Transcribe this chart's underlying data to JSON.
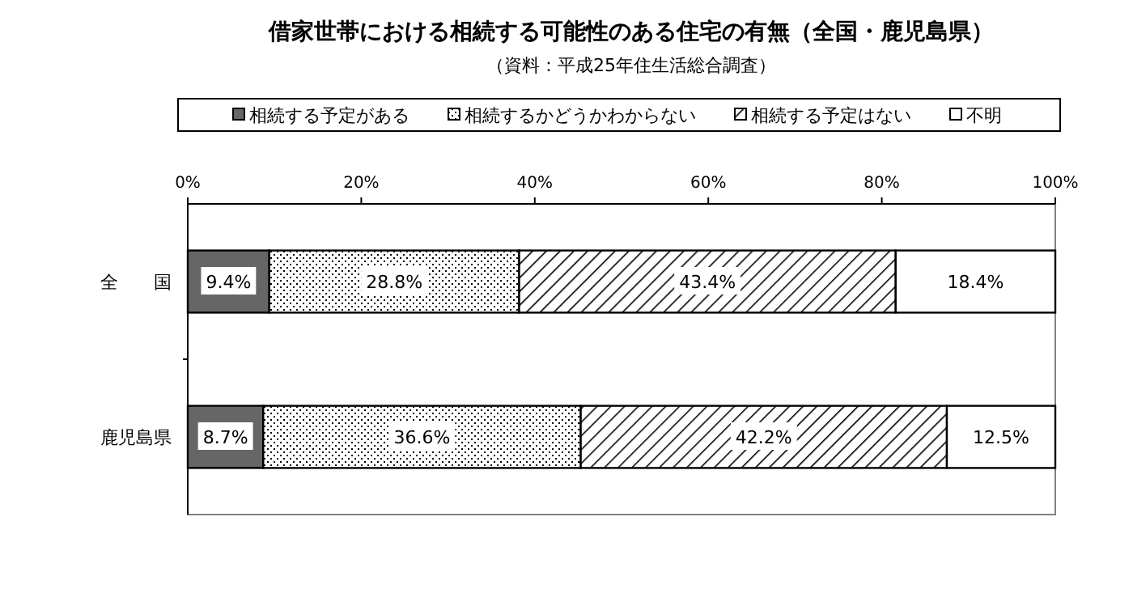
{
  "chart_data": {
    "type": "bar",
    "orientation": "horizontal",
    "stacked": true,
    "title": "借家世帯における相続する可能性のある住宅の有無（全国・鹿児島県）",
    "subtitle": "（資料：平成25年住生活総合調査）",
    "categories": [
      "全　　国",
      "鹿児島県"
    ],
    "series": [
      {
        "name": "相続する予定がある",
        "color": "#666666",
        "values": [
          9.4,
          8.7
        ],
        "value_labels": [
          "9.4%",
          "8.7%"
        ]
      },
      {
        "name": "相続するかどうかわからない",
        "color": "#000000",
        "values": [
          28.8,
          36.6
        ],
        "value_labels": [
          "28.8%",
          "36.6%"
        ]
      },
      {
        "name": "相続する予定はない",
        "color": "#000000",
        "values": [
          43.4,
          42.2
        ],
        "value_labels": [
          "43.4%",
          "42.2%"
        ]
      },
      {
        "name": "不明",
        "color": "#ffffff",
        "values": [
          18.4,
          12.5
        ],
        "value_labels": [
          "18.4%",
          "12.5%"
        ]
      }
    ],
    "xlim": [
      0,
      100
    ],
    "xticks": [
      {
        "value": 0,
        "label": "0%"
      },
      {
        "value": 20,
        "label": "20%"
      },
      {
        "value": 40,
        "label": "40%"
      },
      {
        "value": 60,
        "label": "60%"
      },
      {
        "value": 80,
        "label": "80%"
      },
      {
        "value": 100,
        "label": "100%"
      }
    ],
    "grid": false,
    "legend": "top"
  }
}
